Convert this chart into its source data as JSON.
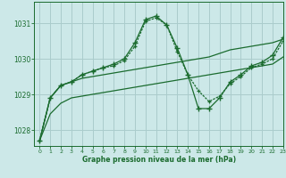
{
  "title": "Graphe pression niveau de la mer (hPa)",
  "background_color": "#cce8e8",
  "grid_color": "#aacccc",
  "line_color": "#1a6b2e",
  "xlim": [
    -0.5,
    23
  ],
  "ylim": [
    1027.55,
    1031.6
  ],
  "yticks": [
    1028,
    1029,
    1030,
    1031
  ],
  "xticks": [
    0,
    1,
    2,
    3,
    4,
    5,
    6,
    7,
    8,
    9,
    10,
    11,
    12,
    13,
    14,
    15,
    16,
    17,
    18,
    19,
    20,
    21,
    22,
    23
  ],
  "series1": [
    1027.7,
    1028.45,
    1028.75,
    1028.9,
    1028.95,
    1029.0,
    1029.05,
    1029.1,
    1029.15,
    1029.2,
    1029.25,
    1029.3,
    1029.35,
    1029.4,
    1029.45,
    1029.5,
    1029.55,
    1029.6,
    1029.65,
    1029.7,
    1029.75,
    1029.8,
    1029.85,
    1030.05
  ],
  "series2": [
    1027.7,
    1028.9,
    1029.25,
    1029.35,
    1029.45,
    1029.5,
    1029.55,
    1029.6,
    1029.65,
    1029.7,
    1029.75,
    1029.8,
    1029.85,
    1029.9,
    1029.95,
    1030.0,
    1030.05,
    1030.15,
    1030.25,
    1030.3,
    1030.35,
    1030.4,
    1030.45,
    1030.55
  ],
  "series3": [
    1027.7,
    1028.9,
    1029.25,
    1029.35,
    1029.55,
    1029.65,
    1029.75,
    1029.8,
    1029.95,
    1030.35,
    1031.05,
    1031.15,
    1030.95,
    1030.2,
    1029.55,
    1029.1,
    1028.8,
    1028.95,
    1029.3,
    1029.5,
    1029.75,
    1029.85,
    1030.0,
    1030.5
  ],
  "series4": [
    1027.7,
    1028.9,
    1029.25,
    1029.35,
    1029.55,
    1029.65,
    1029.75,
    1029.85,
    1030.0,
    1030.45,
    1031.1,
    1031.2,
    1030.95,
    1030.3,
    1029.55,
    1028.6,
    1028.6,
    1028.9,
    1029.35,
    1029.55,
    1029.8,
    1029.9,
    1030.1,
    1030.6
  ]
}
